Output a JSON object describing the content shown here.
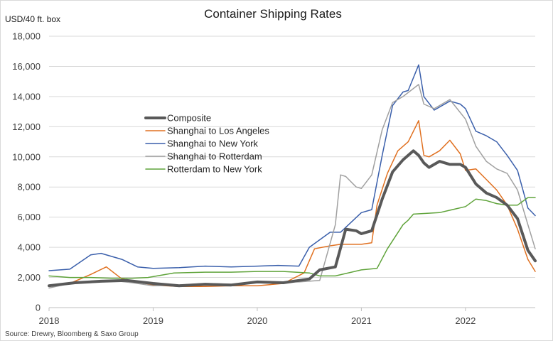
{
  "chart_data": {
    "type": "line",
    "title": "Container Shipping Rates",
    "ylabel": "USD/40 ft. box",
    "source": "Source: Drewry, Bloomberg & Saxo Group",
    "ylim": [
      0,
      18000
    ],
    "yticks": [
      0,
      2000,
      4000,
      6000,
      8000,
      10000,
      12000,
      14000,
      16000,
      18000
    ],
    "ytick_labels": [
      "0",
      "2,000",
      "4,000",
      "6,000",
      "8,000",
      "10,000",
      "12,000",
      "14,000",
      "16,000",
      "18,000"
    ],
    "xlim": [
      2018.0,
      2022.67
    ],
    "xticks": [
      2018,
      2019,
      2020,
      2021,
      2022
    ],
    "xtick_labels": [
      "2018",
      "2019",
      "2020",
      "2021",
      "2022"
    ],
    "grid": "horizontal",
    "legend_position": "center-left",
    "series": [
      {
        "name": "Composite",
        "color": "#595959",
        "width": 4,
        "x": [
          2018.0,
          2018.25,
          2018.5,
          2018.75,
          2019.0,
          2019.25,
          2019.5,
          2019.75,
          2020.0,
          2020.25,
          2020.5,
          2020.6,
          2020.75,
          2020.85,
          2020.95,
          2021.0,
          2021.1,
          2021.2,
          2021.3,
          2021.4,
          2021.5,
          2021.55,
          2021.6,
          2021.65,
          2021.75,
          2021.85,
          2021.95,
          2022.0,
          2022.1,
          2022.2,
          2022.3,
          2022.4,
          2022.5,
          2022.6,
          2022.67
        ],
        "values": [
          1450,
          1650,
          1750,
          1800,
          1600,
          1450,
          1550,
          1500,
          1700,
          1650,
          1900,
          2500,
          2700,
          5200,
          5100,
          4900,
          5100,
          7200,
          9000,
          9800,
          10400,
          10100,
          9600,
          9300,
          9700,
          9500,
          9500,
          9300,
          8200,
          7600,
          7300,
          6800,
          5900,
          3800,
          3100
        ]
      },
      {
        "name": "Shanghai to Los Angeles",
        "color": "#e07020",
        "width": 1.5,
        "x": [
          2018.0,
          2018.2,
          2018.4,
          2018.55,
          2018.7,
          2018.85,
          2019.0,
          2019.25,
          2019.5,
          2019.75,
          2020.0,
          2020.25,
          2020.45,
          2020.55,
          2020.7,
          2020.8,
          2021.0,
          2021.1,
          2021.15,
          2021.25,
          2021.35,
          2021.45,
          2021.55,
          2021.6,
          2021.65,
          2021.75,
          2021.85,
          2021.95,
          2022.0,
          2022.1,
          2022.2,
          2022.3,
          2022.4,
          2022.5,
          2022.6,
          2022.67
        ],
        "values": [
          1400,
          1600,
          2200,
          2700,
          1900,
          1700,
          1500,
          1400,
          1400,
          1450,
          1450,
          1600,
          2300,
          3900,
          4100,
          4200,
          4200,
          4300,
          6800,
          8900,
          10400,
          11000,
          12400,
          10100,
          10000,
          10400,
          11100,
          10200,
          9100,
          9200,
          8500,
          7800,
          6800,
          5200,
          3200,
          2400
        ]
      },
      {
        "name": "Shanghai to New York",
        "color": "#3a5fab",
        "width": 1.5,
        "x": [
          2018.0,
          2018.2,
          2018.4,
          2018.5,
          2018.7,
          2018.85,
          2019.0,
          2019.25,
          2019.5,
          2019.75,
          2020.0,
          2020.2,
          2020.4,
          2020.5,
          2020.7,
          2020.8,
          2021.0,
          2021.1,
          2021.2,
          2021.3,
          2021.4,
          2021.45,
          2021.55,
          2021.6,
          2021.7,
          2021.85,
          2021.95,
          2022.0,
          2022.1,
          2022.2,
          2022.3,
          2022.4,
          2022.5,
          2022.6,
          2022.67
        ],
        "values": [
          2450,
          2550,
          3500,
          3600,
          3200,
          2700,
          2600,
          2650,
          2750,
          2700,
          2750,
          2800,
          2750,
          4000,
          5000,
          5000,
          6300,
          6500,
          10100,
          13400,
          14300,
          14400,
          16100,
          14000,
          13100,
          13700,
          13500,
          13200,
          11700,
          11400,
          11000,
          10100,
          9100,
          6600,
          6100
        ]
      },
      {
        "name": "Shanghai to Rotterdam",
        "color": "#a0a0a0",
        "width": 1.5,
        "x": [
          2018.0,
          2018.2,
          2018.4,
          2018.6,
          2018.8,
          2019.0,
          2019.25,
          2019.5,
          2019.75,
          2020.0,
          2020.25,
          2020.4,
          2020.6,
          2020.75,
          2020.8,
          2020.85,
          2020.95,
          2021.0,
          2021.1,
          2021.2,
          2021.3,
          2021.4,
          2021.55,
          2021.6,
          2021.7,
          2021.85,
          2022.0,
          2022.1,
          2022.2,
          2022.3,
          2022.4,
          2022.5,
          2022.6,
          2022.67
        ],
        "values": [
          1300,
          1600,
          1700,
          1800,
          1650,
          1450,
          1500,
          1600,
          1550,
          1650,
          1700,
          1700,
          1800,
          5500,
          8800,
          8700,
          8000,
          7900,
          8800,
          11800,
          13600,
          14000,
          14800,
          13500,
          13200,
          13800,
          12500,
          10700,
          9700,
          9200,
          8900,
          7800,
          5500,
          3900
        ]
      },
      {
        "name": "Rotterdam to New York",
        "color": "#5fa33a",
        "width": 1.5,
        "x": [
          2018.0,
          2018.2,
          2018.4,
          2018.6,
          2018.8,
          2018.95,
          2019.2,
          2019.5,
          2019.75,
          2020.0,
          2020.25,
          2020.5,
          2020.6,
          2020.75,
          2021.0,
          2021.15,
          2021.25,
          2021.4,
          2021.45,
          2021.5,
          2021.75,
          2022.0,
          2022.1,
          2022.2,
          2022.3,
          2022.4,
          2022.5,
          2022.6,
          2022.67
        ],
        "values": [
          2100,
          2000,
          2000,
          1950,
          1950,
          2000,
          2300,
          2350,
          2350,
          2400,
          2400,
          2300,
          2100,
          2100,
          2500,
          2600,
          3900,
          5500,
          5800,
          6200,
          6300,
          6700,
          7200,
          7100,
          6900,
          6800,
          6800,
          7300,
          7300
        ]
      }
    ]
  }
}
